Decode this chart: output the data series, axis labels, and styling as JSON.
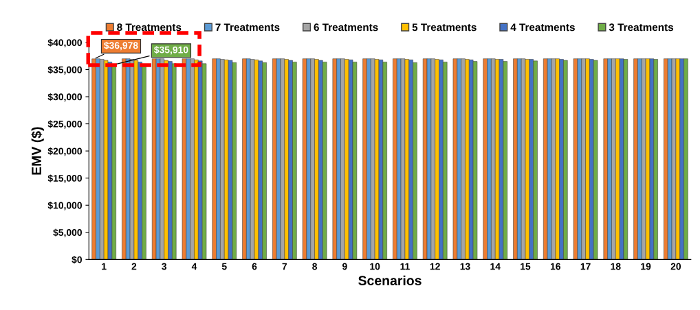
{
  "chart_data": {
    "type": "bar",
    "xlabel": "Scenarios",
    "ylabel": "EMV ($)",
    "categories": [
      "1",
      "2",
      "3",
      "4",
      "5",
      "6",
      "7",
      "8",
      "9",
      "10",
      "11",
      "12",
      "13",
      "14",
      "15",
      "16",
      "17",
      "18",
      "19",
      "20"
    ],
    "ylim": [
      0,
      40000
    ],
    "yticks": [
      {
        "value": 0,
        "label": "$0"
      },
      {
        "value": 5000,
        "label": "$5,000"
      },
      {
        "value": 10000,
        "label": "$10,000"
      },
      {
        "value": 15000,
        "label": "$15,000"
      },
      {
        "value": 20000,
        "label": "$20,000"
      },
      {
        "value": 25000,
        "label": "$25,000"
      },
      {
        "value": 30000,
        "label": "$30,000"
      },
      {
        "value": 35000,
        "label": "$35,000"
      },
      {
        "value": 40000,
        "label": "$40,000"
      }
    ],
    "grid": false,
    "legend": "top",
    "series": [
      {
        "name": "8 Treatments",
        "color": "#ed7d31",
        "values": [
          36978,
          37000,
          37000,
          37000,
          37000,
          37000,
          37000,
          37000,
          37000,
          37000,
          37000,
          37000,
          37000,
          37000,
          37000,
          37000,
          37000,
          37000,
          37000,
          37000
        ],
        "value_labels": [
          "$36,978",
          null,
          null,
          null,
          null,
          null,
          null,
          null,
          null,
          null,
          null,
          null,
          null,
          null,
          null,
          null,
          null,
          null,
          null,
          null
        ]
      },
      {
        "name": "7 Treatments",
        "color": "#5b9bd5",
        "values": [
          37000,
          37000,
          37000,
          37000,
          37000,
          37000,
          37000,
          37000,
          37000,
          37000,
          37000,
          37000,
          37000,
          37000,
          37000,
          37000,
          37000,
          37000,
          37000,
          37000
        ]
      },
      {
        "name": "6 Treatments",
        "color": "#a5a5a5",
        "values": [
          36900,
          36900,
          37000,
          37000,
          36900,
          36900,
          37000,
          37000,
          37000,
          37000,
          37000,
          37000,
          37000,
          37000,
          37000,
          37000,
          37000,
          37000,
          37000,
          37000
        ]
      },
      {
        "name": "5 Treatments",
        "color": "#ffc000",
        "values": [
          36700,
          36700,
          36700,
          36800,
          36800,
          36800,
          36900,
          36900,
          36900,
          36900,
          36900,
          36900,
          36900,
          36900,
          36900,
          37000,
          37000,
          37000,
          37000,
          37000
        ]
      },
      {
        "name": "4 Treatments",
        "color": "#4472c4",
        "values": [
          36400,
          36400,
          36500,
          36600,
          36700,
          36600,
          36700,
          36700,
          36800,
          36800,
          36800,
          36800,
          36800,
          36900,
          36900,
          36900,
          36900,
          37000,
          37000,
          37000
        ]
      },
      {
        "name": "3 Treatments",
        "color": "#70ad47",
        "values": [
          35910,
          36000,
          36100,
          36100,
          36300,
          36300,
          36400,
          36400,
          36400,
          36400,
          36300,
          36400,
          36500,
          36500,
          36600,
          36700,
          36700,
          36900,
          36900,
          37000
        ],
        "value_labels": [
          "$35,910",
          null,
          null,
          null,
          null,
          null,
          null,
          null,
          null,
          null,
          null,
          null,
          null,
          null,
          null,
          null,
          null,
          null,
          null,
          null
        ]
      }
    ]
  }
}
